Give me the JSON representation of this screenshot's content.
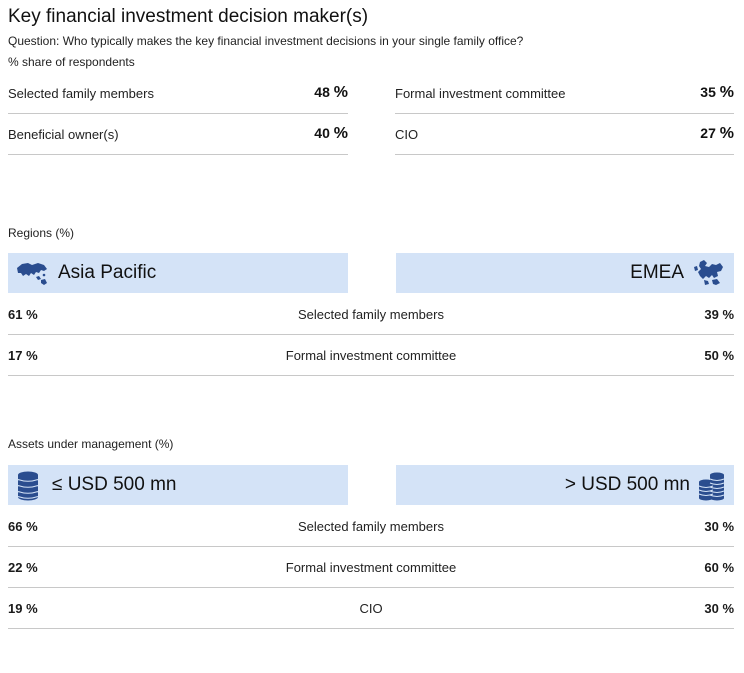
{
  "title": "Key financial investment decision maker(s)",
  "question": "Question: Who typically makes the key financial investment decisions in your single family office?",
  "subtitle": "% share of respondents",
  "pct_sign": "%",
  "colors": {
    "banner_bg": "#d4e3f7",
    "icon_blue": "#2a4d8f",
    "rule": "#c8c8c8"
  },
  "chart_data": [
    {
      "type": "table",
      "title": "Key financial investment decision maker(s)",
      "items": [
        {
          "label": "Selected family members",
          "value": "48"
        },
        {
          "label": "Beneficial owner(s)",
          "value": "40"
        },
        {
          "label": "Formal investment committee",
          "value": "35"
        },
        {
          "label": "CIO",
          "value": "27"
        }
      ]
    },
    {
      "type": "table",
      "section_label": "Regions (%)",
      "left_group": {
        "name": "Asia Pacific",
        "icon": "asia-map-icon"
      },
      "right_group": {
        "name": "EMEA",
        "icon": "europe-map-icon"
      },
      "rows": [
        {
          "label": "Selected family members",
          "left": "61",
          "right": "39"
        },
        {
          "label": "Formal investment committee",
          "left": "17",
          "right": "50"
        }
      ]
    },
    {
      "type": "table",
      "section_label": "Assets under management (%)",
      "left_group": {
        "name": "≤ USD 500 mn",
        "icon": "coin-stack-small-icon"
      },
      "right_group": {
        "name": "> USD 500 mn",
        "icon": "coin-stack-large-icon"
      },
      "rows": [
        {
          "label": "Selected family members",
          "left": "66",
          "right": "30"
        },
        {
          "label": "Formal investment committee",
          "left": "22",
          "right": "60"
        },
        {
          "label": "CIO",
          "left": "19",
          "right": "30"
        }
      ]
    }
  ]
}
